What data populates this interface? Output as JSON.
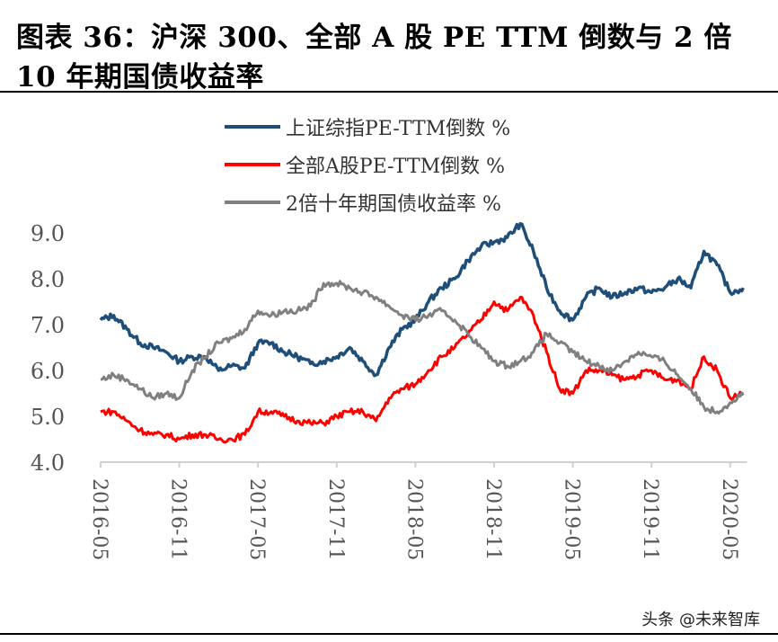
{
  "title_line1": "图表 36：沪深 300、全部 A 股 PE TTM 倒数与 2 倍",
  "title_line2": "10 年期国债收益率",
  "watermark": "头条 @未来智库",
  "chart_data": {
    "type": "line",
    "title": "图表 36：沪深 300、全部 A 股 PE TTM 倒数与 2 倍 10 年期国债收益率",
    "legend_position": "top",
    "grid": false,
    "ylim": [
      4.0,
      9.0
    ],
    "yticks": [
      "9.0",
      "8.0",
      "7.0",
      "6.0",
      "5.0",
      "4.0"
    ],
    "xticks": [
      "2016-05",
      "2016-11",
      "2017-05",
      "2017-11",
      "2018-05",
      "2018-11",
      "2019-05",
      "2019-11",
      "2020-05"
    ],
    "x_start": "2016-05",
    "x_frequency": "monthly",
    "series": [
      {
        "name": "上证综指PE-TTM倒数 %",
        "color": "#1f4e79",
        "values": [
          7.1,
          7.2,
          6.9,
          6.6,
          6.5,
          6.4,
          6.2,
          6.3,
          6.3,
          6.0,
          6.1,
          6.05,
          6.6,
          6.6,
          6.4,
          6.3,
          6.15,
          6.2,
          6.3,
          6.5,
          6.2,
          5.9,
          6.5,
          6.9,
          7.1,
          7.5,
          7.8,
          8.0,
          8.4,
          8.7,
          8.8,
          8.9,
          9.2,
          8.6,
          7.8,
          7.3,
          7.1,
          7.6,
          7.8,
          7.6,
          7.7,
          7.8,
          7.7,
          7.8,
          8.0,
          7.8,
          8.6,
          8.3,
          7.7,
          7.8
        ]
      },
      {
        "name": "全部A股PE-TTM倒数 %",
        "color": "#ff0000",
        "values": [
          5.1,
          5.1,
          4.9,
          4.7,
          4.6,
          4.6,
          4.5,
          4.6,
          4.6,
          4.5,
          4.5,
          4.6,
          5.1,
          5.1,
          5.0,
          4.9,
          4.85,
          4.85,
          5.0,
          5.1,
          5.1,
          4.9,
          5.4,
          5.6,
          5.7,
          6.0,
          6.3,
          6.5,
          6.8,
          7.1,
          7.5,
          7.3,
          7.6,
          7.2,
          6.4,
          5.6,
          5.5,
          6.0,
          6.0,
          5.9,
          5.8,
          5.9,
          6.0,
          5.8,
          5.8,
          5.6,
          6.3,
          6.0,
          5.4,
          5.5
        ]
      },
      {
        "name": "2倍十年期国债收益率 %",
        "color": "#808080",
        "values": [
          5.8,
          5.9,
          5.8,
          5.6,
          5.4,
          5.5,
          5.4,
          6.0,
          6.3,
          6.6,
          6.7,
          6.9,
          7.3,
          7.2,
          7.3,
          7.3,
          7.4,
          7.9,
          7.9,
          7.8,
          7.7,
          7.6,
          7.4,
          7.2,
          7.1,
          7.2,
          7.3,
          7.1,
          6.8,
          6.5,
          6.2,
          6.1,
          6.2,
          6.4,
          6.8,
          6.6,
          6.4,
          6.2,
          6.1,
          6.0,
          6.2,
          6.4,
          6.3,
          6.2,
          5.9,
          5.6,
          5.2,
          5.1,
          5.3,
          5.5
        ]
      }
    ]
  }
}
